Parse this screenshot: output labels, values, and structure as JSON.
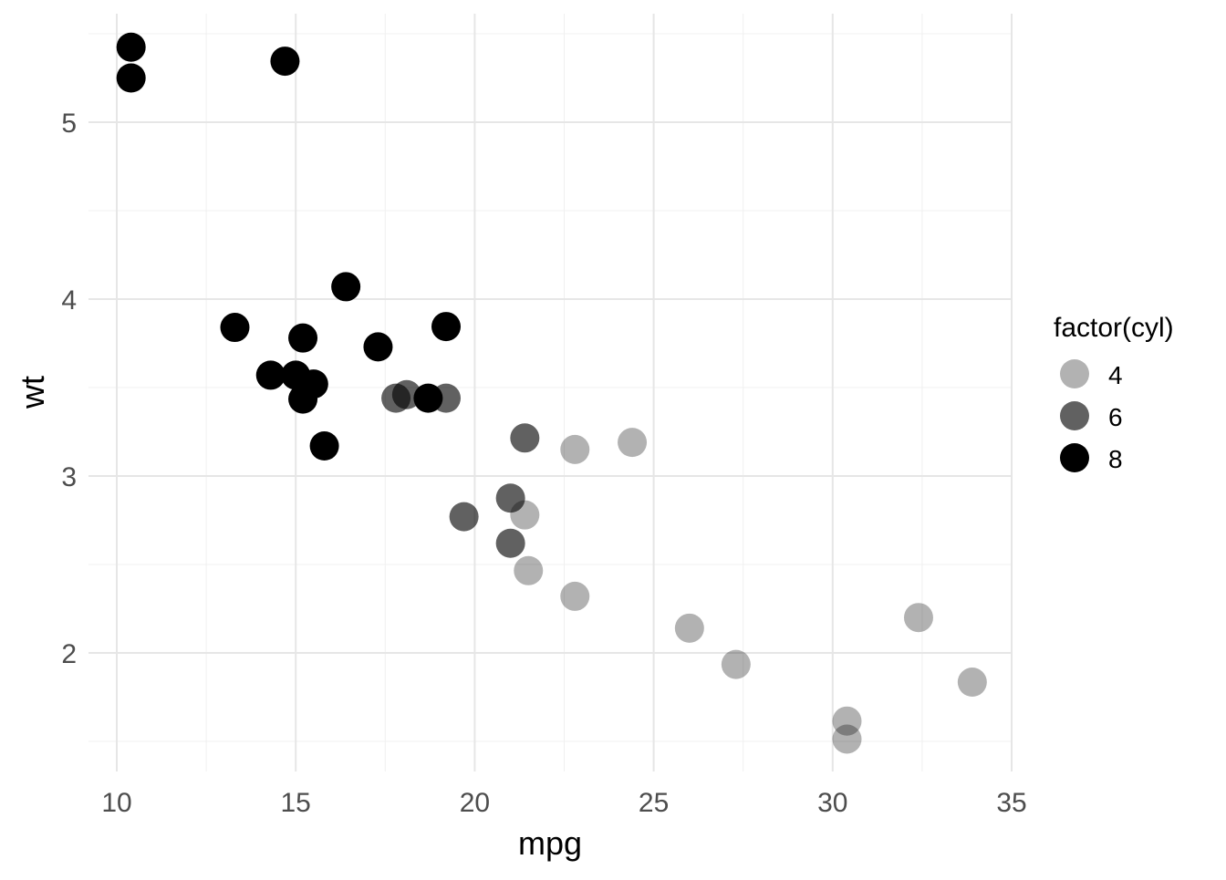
{
  "chart_data": {
    "type": "scatter",
    "title": "",
    "xlabel": "mpg",
    "ylabel": "wt",
    "xlim": [
      9.2,
      35
    ],
    "ylim": [
      1.33,
      5.6
    ],
    "x_ticks": [
      "10",
      "15",
      "20",
      "25",
      "30",
      "35"
    ],
    "x_tick_values": [
      10,
      15,
      20,
      25,
      30,
      35
    ],
    "y_ticks": [
      "2",
      "3",
      "4",
      "5"
    ],
    "y_tick_values": [
      2,
      3,
      4,
      5
    ],
    "grid": true,
    "legend": {
      "title": "factor(cyl)",
      "placement": "right",
      "entries": [
        "4",
        "6",
        "8"
      ],
      "alphas": [
        0.3,
        0.62,
        1.0
      ]
    },
    "point_color": "#000000",
    "series": [
      {
        "name": "4",
        "x": [
          22.8,
          24.4,
          22.8,
          32.4,
          30.4,
          33.9,
          21.5,
          27.3,
          26.0,
          30.4,
          21.4
        ],
        "y": [
          2.32,
          3.19,
          3.15,
          2.2,
          1.615,
          1.835,
          2.465,
          1.935,
          2.14,
          1.513,
          2.78
        ]
      },
      {
        "name": "6",
        "x": [
          21.0,
          21.0,
          21.4,
          18.1,
          19.2,
          17.8,
          19.7
        ],
        "y": [
          2.62,
          2.875,
          3.215,
          3.46,
          3.44,
          3.44,
          2.77
        ]
      },
      {
        "name": "8",
        "x": [
          18.7,
          14.3,
          16.4,
          17.3,
          15.2,
          10.4,
          10.4,
          14.7,
          15.5,
          15.2,
          13.3,
          19.2,
          15.8,
          15.0
        ],
        "y": [
          3.44,
          3.57,
          4.07,
          3.73,
          3.78,
          5.25,
          5.424,
          5.345,
          3.52,
          3.435,
          3.84,
          3.845,
          3.17,
          3.57
        ]
      }
    ]
  }
}
